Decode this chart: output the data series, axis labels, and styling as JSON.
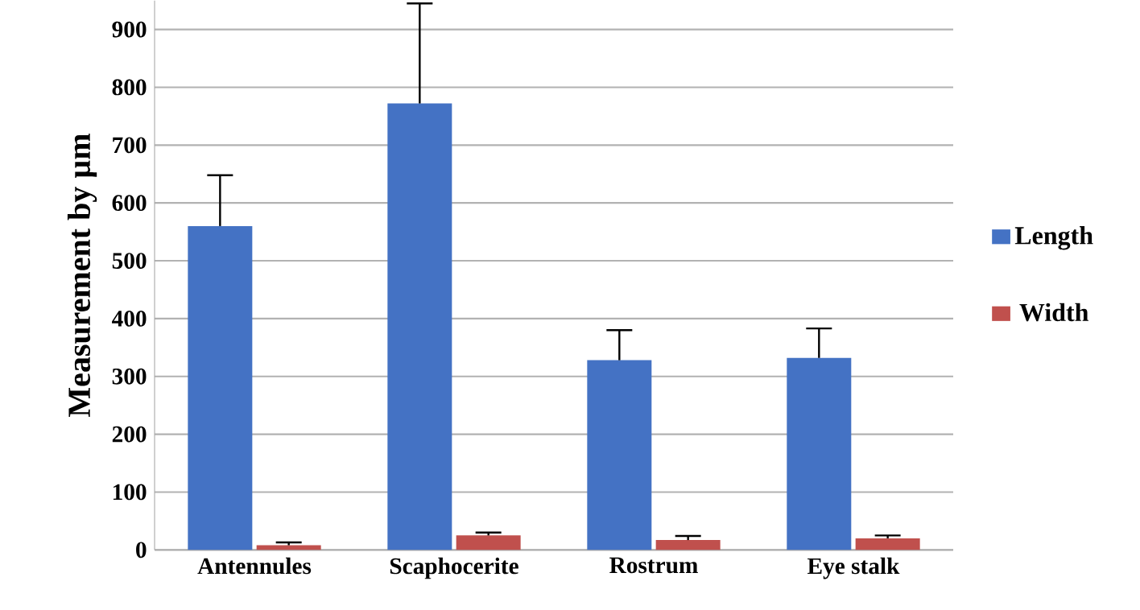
{
  "chart_data": {
    "type": "bar",
    "ylabel": "Measurement by µm",
    "categories": [
      "Antennules",
      "Scaphocerite",
      "Rostrum",
      "Eye stalk"
    ],
    "series": [
      {
        "name": "Length",
        "color": "#4472c4",
        "values": [
          560,
          772,
          328,
          332
        ],
        "errors": [
          [
            560,
            648
          ],
          [
            772,
            945
          ],
          [
            328,
            380
          ],
          [
            332,
            383
          ]
        ]
      },
      {
        "name": "Width",
        "color": "#c0504d",
        "values": [
          8,
          25,
          17,
          20
        ],
        "errors": [
          [
            8,
            13
          ],
          [
            25,
            30
          ],
          [
            17,
            24
          ],
          [
            20,
            25
          ]
        ]
      }
    ],
    "ylim": [
      0,
      950
    ],
    "yticks": [
      0,
      100,
      200,
      300,
      400,
      500,
      600,
      700,
      800,
      900
    ],
    "grid": "y",
    "legend": "right"
  }
}
